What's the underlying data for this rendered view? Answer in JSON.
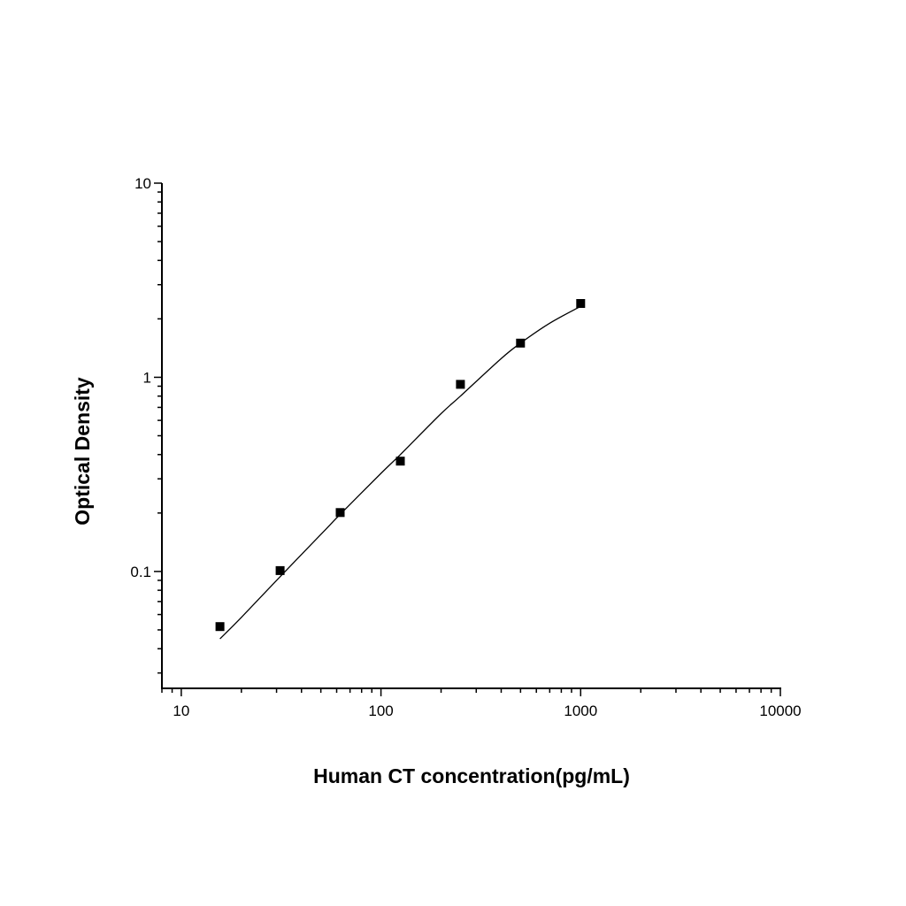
{
  "chart_data": {
    "type": "scatter",
    "title": "",
    "xlabel": "Human CT concentration(pg/mL)",
    "ylabel": "Optical Density",
    "x_scale": "log",
    "y_scale": "log",
    "xlim": [
      8,
      10000
    ],
    "ylim": [
      0.025,
      10
    ],
    "x_ticks": [
      {
        "value": 10,
        "label": "10"
      },
      {
        "value": 100,
        "label": "100"
      },
      {
        "value": 1000,
        "label": "1000"
      },
      {
        "value": 10000,
        "label": "10000"
      }
    ],
    "y_ticks": [
      {
        "value": 0.1,
        "label": "0.1"
      },
      {
        "value": 1,
        "label": "1"
      },
      {
        "value": 10,
        "label": "10"
      }
    ],
    "grid": false,
    "legend": "none",
    "marker_color": "#000000",
    "series": [
      {
        "x": [
          15.625,
          31.25,
          62.5,
          125,
          250,
          500,
          1000
        ],
        "y": [
          0.052,
          0.101,
          0.201,
          0.37,
          0.92,
          1.5,
          2.4
        ]
      }
    ],
    "fit_curve": {
      "x": [
        15.625,
        20,
        31.25,
        50,
        62.5,
        100,
        125,
        200,
        250,
        400,
        500,
        700,
        1000
      ],
      "y": [
        0.045,
        0.058,
        0.094,
        0.155,
        0.197,
        0.32,
        0.4,
        0.65,
        0.8,
        1.25,
        1.5,
        1.9,
        2.32
      ]
    }
  }
}
